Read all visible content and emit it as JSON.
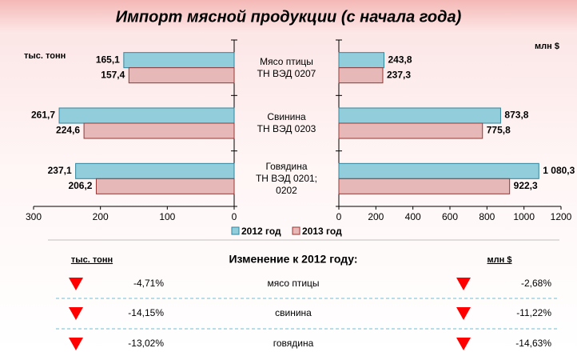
{
  "title": "Импорт мясной продукции (с начала года)",
  "chart_data": [
    {
      "type": "bar",
      "orientation": "horizontal",
      "x_label": "тыс. тонн",
      "categories": [
        "Мясо птицы\nТН ВЭД 0207",
        "Свинина\nТН ВЭД 0203",
        "Говядина\nТН ВЭД 0201;\n0202"
      ],
      "series": [
        {
          "name": "2012 год",
          "color": "#92cddc",
          "edge": "#31859c",
          "label_color": "#31849b",
          "values": [
            165.1,
            261.7,
            237.1
          ],
          "value_labels": [
            "165,1",
            "261,7",
            "237,1"
          ]
        },
        {
          "name": "2013 год",
          "color": "#e6b9b8",
          "edge": "#953735",
          "label_color": "#953735",
          "values": [
            157.4,
            224.6,
            206.2
          ],
          "value_labels": [
            "157,4",
            "224,6",
            "206,2"
          ]
        }
      ],
      "xlim": [
        300,
        0
      ],
      "xticks": [
        300,
        200,
        100,
        0
      ]
    },
    {
      "type": "bar",
      "orientation": "horizontal",
      "x_label": "млн $",
      "series": [
        {
          "color": "#92cddc",
          "edge": "#31859c",
          "label_color": "#31849b",
          "values": [
            243.8,
            873.8,
            1080.3
          ],
          "value_labels": [
            "243,8",
            "873,8",
            "1 080,3"
          ]
        },
        {
          "color": "#e6b9b8",
          "edge": "#953735",
          "label_color": "#953735",
          "values": [
            237.3,
            775.8,
            922.3
          ],
          "value_labels": [
            "237,3",
            "775,8",
            "922,3"
          ]
        }
      ],
      "xlim": [
        0,
        1200
      ],
      "xticks": [
        0,
        200,
        400,
        600,
        800,
        1000,
        1200
      ]
    }
  ],
  "table": {
    "header": [
      "тыс. тонн",
      "Изменение к 2012 году:",
      "млн $"
    ],
    "rows": [
      [
        "-4,71%",
        "мясо птицы",
        "-2,68%"
      ],
      [
        "-14,15%",
        "свинина",
        "-11,22%"
      ],
      [
        "-13,02%",
        "говядина",
        "-14,63%"
      ]
    ]
  }
}
